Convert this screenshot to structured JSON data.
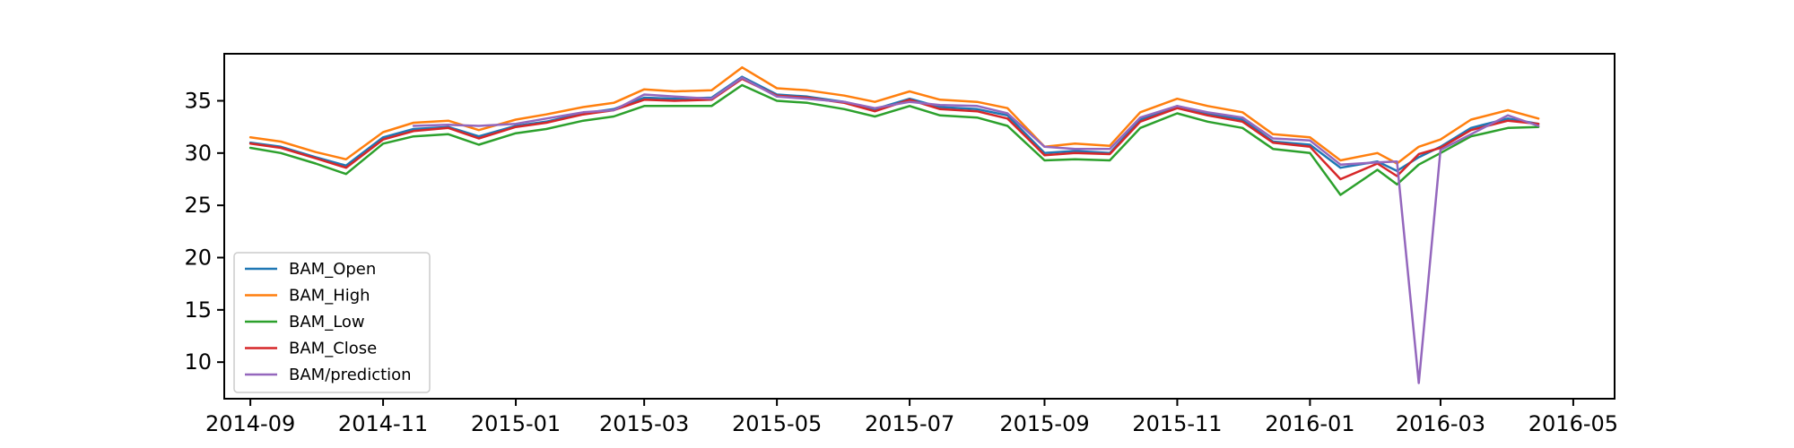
{
  "chart_data": {
    "type": "line",
    "title": "",
    "xlabel": "",
    "ylabel": "",
    "xlim": [
      "2014-08-20",
      "2016-05-20"
    ],
    "ylim": [
      6.5,
      39.5
    ],
    "grid": false,
    "legend_position": "lower-left",
    "x_ticks": [
      {
        "date": "2014-09-01",
        "label": "2014-09"
      },
      {
        "date": "2014-11-01",
        "label": "2014-11"
      },
      {
        "date": "2015-01-01",
        "label": "2015-01"
      },
      {
        "date": "2015-03-01",
        "label": "2015-03"
      },
      {
        "date": "2015-05-01",
        "label": "2015-05"
      },
      {
        "date": "2015-07-01",
        "label": "2015-07"
      },
      {
        "date": "2015-09-01",
        "label": "2015-09"
      },
      {
        "date": "2015-11-01",
        "label": "2015-11"
      },
      {
        "date": "2016-01-01",
        "label": "2016-01"
      },
      {
        "date": "2016-03-01",
        "label": "2016-03"
      },
      {
        "date": "2016-05-01",
        "label": "2016-05"
      }
    ],
    "y_ticks": [
      {
        "value": 10,
        "label": "10"
      },
      {
        "value": 15,
        "label": "15"
      },
      {
        "value": 20,
        "label": "20"
      },
      {
        "value": 25,
        "label": "25"
      },
      {
        "value": 30,
        "label": "30"
      },
      {
        "value": 35,
        "label": "35"
      }
    ],
    "x": [
      "2014-09-01",
      "2014-09-15",
      "2014-10-01",
      "2014-10-15",
      "2014-11-01",
      "2014-11-15",
      "2014-12-01",
      "2014-12-15",
      "2015-01-01",
      "2015-01-15",
      "2015-02-01",
      "2015-02-15",
      "2015-03-01",
      "2015-03-15",
      "2015-04-01",
      "2015-04-15",
      "2015-05-01",
      "2015-05-15",
      "2015-06-01",
      "2015-06-15",
      "2015-07-01",
      "2015-07-15",
      "2015-08-01",
      "2015-08-15",
      "2015-09-01",
      "2015-09-15",
      "2015-10-01",
      "2015-10-15",
      "2015-11-01",
      "2015-11-15",
      "2015-12-01",
      "2015-12-15",
      "2016-01-01",
      "2016-01-15",
      "2016-02-01",
      "2016-02-10",
      "2016-02-20",
      "2016-03-01",
      "2016-03-15",
      "2016-04-01",
      "2016-04-15"
    ],
    "series": [
      {
        "name": "BAM_Open",
        "color": "#1f77b4",
        "values": [
          31.0,
          30.6,
          29.6,
          28.8,
          31.5,
          32.3,
          32.5,
          31.6,
          32.6,
          33.0,
          33.8,
          34.2,
          35.3,
          35.2,
          35.3,
          37.3,
          35.6,
          35.4,
          34.9,
          34.2,
          35.2,
          34.4,
          34.2,
          33.6,
          30.0,
          30.2,
          30.0,
          33.2,
          34.5,
          33.8,
          33.2,
          31.1,
          30.8,
          28.6,
          29.2,
          28.3,
          29.6,
          30.6,
          32.4,
          33.3,
          32.8
        ]
      },
      {
        "name": "BAM_High",
        "color": "#ff7f0e",
        "values": [
          31.5,
          31.1,
          30.1,
          29.4,
          32.0,
          32.9,
          33.1,
          32.2,
          33.2,
          33.7,
          34.4,
          34.8,
          36.1,
          35.9,
          36.0,
          38.2,
          36.2,
          36.0,
          35.5,
          34.9,
          35.9,
          35.1,
          34.9,
          34.3,
          30.6,
          30.9,
          30.7,
          33.9,
          35.2,
          34.5,
          33.9,
          31.8,
          31.5,
          29.3,
          30.0,
          29.0,
          30.6,
          31.3,
          33.2,
          34.1,
          33.3
        ]
      },
      {
        "name": "BAM_Low",
        "color": "#2ca02c",
        "values": [
          30.5,
          30.0,
          29.0,
          28.0,
          30.9,
          31.6,
          31.8,
          30.8,
          31.9,
          32.3,
          33.1,
          33.5,
          34.5,
          34.5,
          34.5,
          36.5,
          35.0,
          34.8,
          34.2,
          33.5,
          34.5,
          33.6,
          33.4,
          32.6,
          29.3,
          29.4,
          29.3,
          32.4,
          33.8,
          33.0,
          32.4,
          30.4,
          30.0,
          26.0,
          28.4,
          27.0,
          28.9,
          30.0,
          31.6,
          32.4,
          32.5
        ]
      },
      {
        "name": "BAM_Close",
        "color": "#d62728",
        "values": [
          30.9,
          30.5,
          29.5,
          28.6,
          31.3,
          32.1,
          32.4,
          31.4,
          32.5,
          32.9,
          33.7,
          34.1,
          35.1,
          35.0,
          35.1,
          37.1,
          35.5,
          35.3,
          34.8,
          34.0,
          35.1,
          34.2,
          34.0,
          33.3,
          29.8,
          30.0,
          29.9,
          33.0,
          34.3,
          33.6,
          33.0,
          31.0,
          30.6,
          27.5,
          29.0,
          27.8,
          29.9,
          30.5,
          32.2,
          33.1,
          32.8
        ]
      },
      {
        "name": "BAM/prediction",
        "color": "#9467bd",
        "values": [
          null,
          null,
          null,
          null,
          null,
          32.6,
          32.7,
          32.6,
          32.8,
          33.3,
          33.9,
          34.1,
          35.6,
          35.4,
          35.2,
          37.2,
          35.4,
          35.2,
          34.9,
          34.3,
          34.9,
          34.6,
          34.5,
          33.8,
          30.6,
          30.4,
          30.4,
          33.4,
          34.5,
          33.9,
          33.4,
          31.4,
          31.2,
          28.9,
          29.1,
          29.2,
          8.0,
          30.3,
          31.8,
          33.6,
          32.6
        ]
      }
    ]
  }
}
